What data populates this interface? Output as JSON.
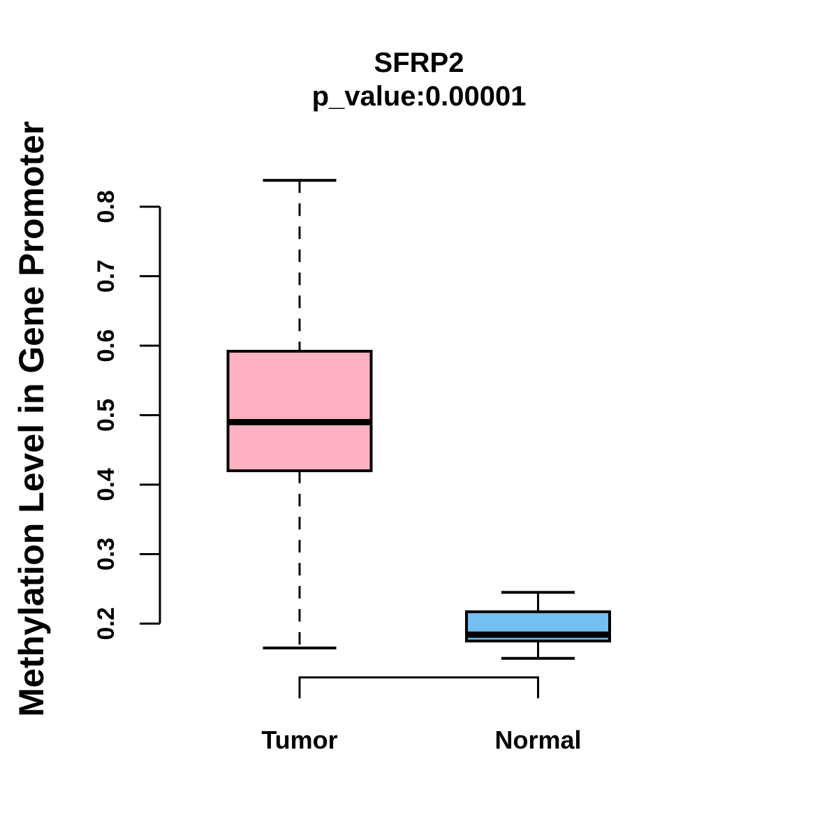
{
  "chart_data": {
    "type": "boxplot",
    "title": "SFRP2",
    "subtitle": "p_value:0.00001",
    "ylabel": "Methylation Level in Gene Promoter",
    "xlabel": "",
    "ytick_labels": [
      "0.2",
      "0.3",
      "0.4",
      "0.5",
      "0.6",
      "0.7",
      "0.8"
    ],
    "ytick_values": [
      0.2,
      0.3,
      0.4,
      0.5,
      0.6,
      0.7,
      0.8
    ],
    "ylim": [
      0.14,
      0.86
    ],
    "grid": false,
    "legend": "none",
    "categories": [
      "Tumor",
      "Normal"
    ],
    "series": [
      {
        "name": "Tumor",
        "whisker_low": 0.165,
        "q1": 0.42,
        "median": 0.49,
        "q3": 0.592,
        "whisker_high": 0.838,
        "fill_color": "#FFB1C1",
        "whisker_line": "dashed"
      },
      {
        "name": "Normal",
        "whisker_low": 0.15,
        "q1": 0.175,
        "median": 0.184,
        "q3": 0.217,
        "whisker_high": 0.245,
        "fill_color": "#73BFF2",
        "whisker_line": "solid"
      }
    ],
    "axis_color": "#000000",
    "box_border_color": "#000000",
    "background_color": "#FFFFFF"
  }
}
